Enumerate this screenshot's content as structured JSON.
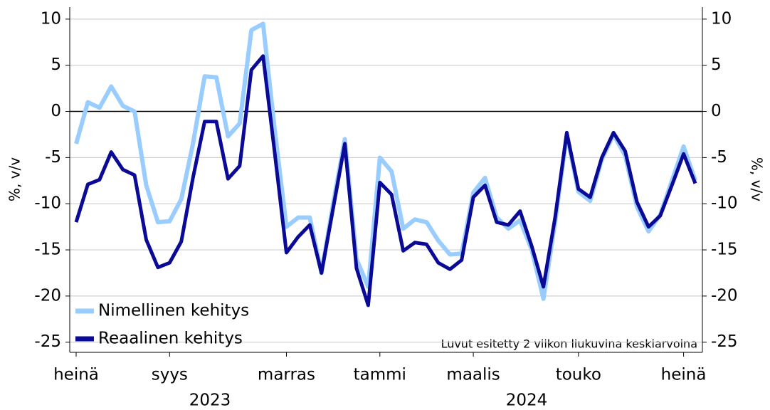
{
  "chart_data": {
    "type": "line",
    "ylabel": "%, v/v",
    "y2label": "%, v/v",
    "annotation": "Luvut esitetty 2 viikon liukuvina keskiarvoina",
    "categories": [
      "heinä",
      null,
      null,
      null,
      null,
      null,
      null,
      null,
      "syys",
      null,
      null,
      null,
      null,
      null,
      null,
      null,
      null,
      null,
      "marras",
      null,
      null,
      null,
      null,
      null,
      null,
      null,
      "tammi",
      null,
      null,
      null,
      null,
      null,
      null,
      null,
      "maalis",
      null,
      null,
      null,
      null,
      null,
      null,
      null,
      null,
      "touko",
      null,
      null,
      null,
      null,
      null,
      null,
      null,
      null,
      "heinä",
      null
    ],
    "year_labels": [
      "2023",
      "2024"
    ],
    "series": [
      {
        "name": "Nimellinen kehitys",
        "color": "#99ccff",
        "values": [
          -3.5,
          1,
          0.4,
          2.7,
          0.6,
          0,
          -8,
          -12,
          -11.9,
          -9.5,
          -3.5,
          3.8,
          3.7,
          -2.7,
          -1.3,
          8.8,
          9.5,
          -2,
          -12.5,
          -11.5,
          -11.5,
          -17.5,
          -10,
          -3,
          -16,
          -19,
          -5,
          -6.5,
          -12.7,
          -11.7,
          -12,
          -14,
          -15.5,
          -15.4,
          -8.8,
          -7.2,
          -11.5,
          -12.7,
          -11.8,
          -15,
          -20.3,
          -12,
          -2.5,
          -8.7,
          -9.7,
          -5.2,
          -2.5,
          -4.8,
          -10.3,
          -13,
          -11.2,
          -7.5,
          -3.8,
          -7.5
        ]
      },
      {
        "name": "Reaalinen kehitys",
        "color": "#0a0a96",
        "values": [
          -12,
          -7.9,
          -7.4,
          -4.4,
          -6.3,
          -6.9,
          -13.9,
          -16.9,
          -16.4,
          -14.1,
          -7.2,
          -1.1,
          -1.1,
          -7.3,
          -5.9,
          4.5,
          6,
          -4.5,
          -15.3,
          -13.6,
          -12.3,
          -17.5,
          -10.5,
          -3.5,
          -17,
          -21,
          -7.7,
          -9,
          -15.1,
          -14.2,
          -14.4,
          -16.4,
          -17.1,
          -16.1,
          -9.3,
          -8,
          -12,
          -12.3,
          -10.8,
          -14.6,
          -19,
          -11.5,
          -2.3,
          -8.4,
          -9.3,
          -5,
          -2.3,
          -4.3,
          -9.8,
          -12.5,
          -11.3,
          -8,
          -4.6,
          -7.8
        ]
      }
    ],
    "ylim": [
      -26.1,
      11.3
    ],
    "yticks": [
      -25,
      -20,
      -15,
      -10,
      -5,
      0,
      5,
      10
    ],
    "y2lim": [
      -26.1,
      11.3
    ],
    "y2ticks": [
      -25,
      -20,
      -15,
      -10,
      -5,
      0,
      5,
      10
    ],
    "grid": true,
    "legend": "lower left"
  }
}
